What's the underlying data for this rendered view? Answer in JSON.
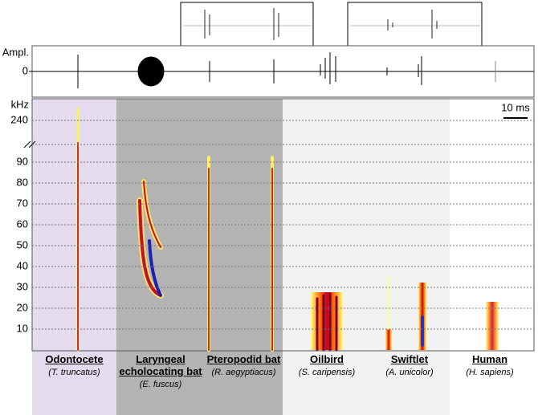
{
  "chart_data": {
    "type": "spectrogram",
    "amplitude_label": "Ampl.",
    "amplitude_ticks": [
      0
    ],
    "y_label": "kHz",
    "ylim": [
      0,
      100
    ],
    "yticks": [
      10,
      20,
      30,
      40,
      50,
      60,
      70,
      80,
      90
    ],
    "break_tick": 240,
    "scale_bar": "10 ms",
    "categories": [
      "Odontocete",
      "Laryngeal echolocating bat",
      "Pteropodid bat",
      "Oilbird",
      "Swiftlet",
      "Human"
    ],
    "scientific_names": [
      "(T. truncatus)",
      "(E. fuscus)",
      "(R. aegyptiacus)",
      "(S. caripensis)",
      "(A. unicolor)",
      "(H. sapiens)"
    ],
    "grid": true
  }
}
